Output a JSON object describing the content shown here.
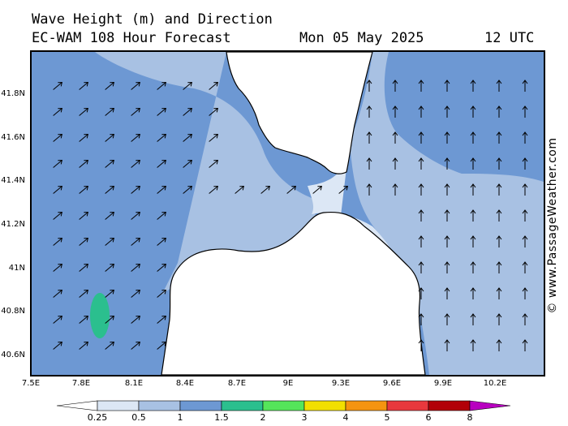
{
  "header": {
    "title": "Wave Height (m) and Direction",
    "model": "EC-WAM 108 Hour Forecast",
    "date": "Mon 05 May 2025",
    "time": "12 UTC"
  },
  "watermark": "© www.PassageWeather.com",
  "axes": {
    "lat_labels": [
      "41.8N",
      "41.6N",
      "41.4N",
      "41.2N",
      "41N",
      "40.8N",
      "40.6N"
    ],
    "lon_labels": [
      "7.5E",
      "7.8E",
      "8.1E",
      "8.4E",
      "8.7E",
      "9E",
      "9.3E",
      "9.6E",
      "9.9E",
      "10.2E"
    ]
  },
  "legend": {
    "labels": [
      "0.25",
      "0.5",
      "1",
      "1.5",
      "2",
      "3",
      "4",
      "5",
      "6",
      "8"
    ],
    "colors": [
      "#ffffff",
      "#dce7f5",
      "#a8c1e3",
      "#6d98d3",
      "#2bbf8e",
      "#55e55a",
      "#f2df00",
      "#f59410",
      "#e8383d",
      "#b20008",
      "#b800c0"
    ]
  },
  "map": {
    "region": "Corsica / Sardinia – Strait of Bonifacio",
    "colors": {
      "sea_1_to_1_5": "#6d98d3",
      "sea_0_5_to_1": "#a8c1e3",
      "sea_0_25_to_0_5": "#dce7f5",
      "sea_1_5_to_2": "#2bbf8e",
      "land": "#ffffff",
      "coast": "#000000"
    },
    "arrow_directions": {
      "west_sea": "north-east",
      "east_sea": "north"
    }
  }
}
